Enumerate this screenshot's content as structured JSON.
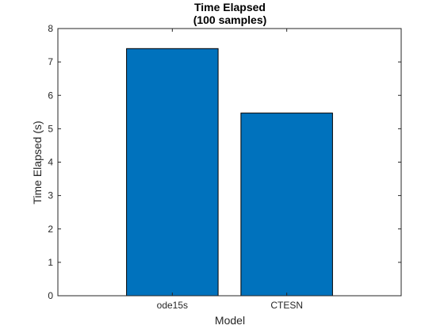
{
  "chart_data": {
    "type": "bar",
    "title": [
      "Time Elapsed",
      "(100 samples)"
    ],
    "xlabel": "Model",
    "ylabel": "Time Elapsed (s)",
    "categories": [
      "ode15s",
      "CTESN"
    ],
    "values": [
      7.4,
      5.47
    ],
    "ylim": [
      0,
      8
    ],
    "yticks": [
      0,
      1,
      2,
      3,
      4,
      5,
      6,
      7,
      8
    ],
    "xlim": [
      0,
      3
    ],
    "grid": false,
    "legend": "none",
    "colors": {
      "bar": "#0072BD",
      "bar_edge": "#000000",
      "axis": "#262626"
    }
  }
}
